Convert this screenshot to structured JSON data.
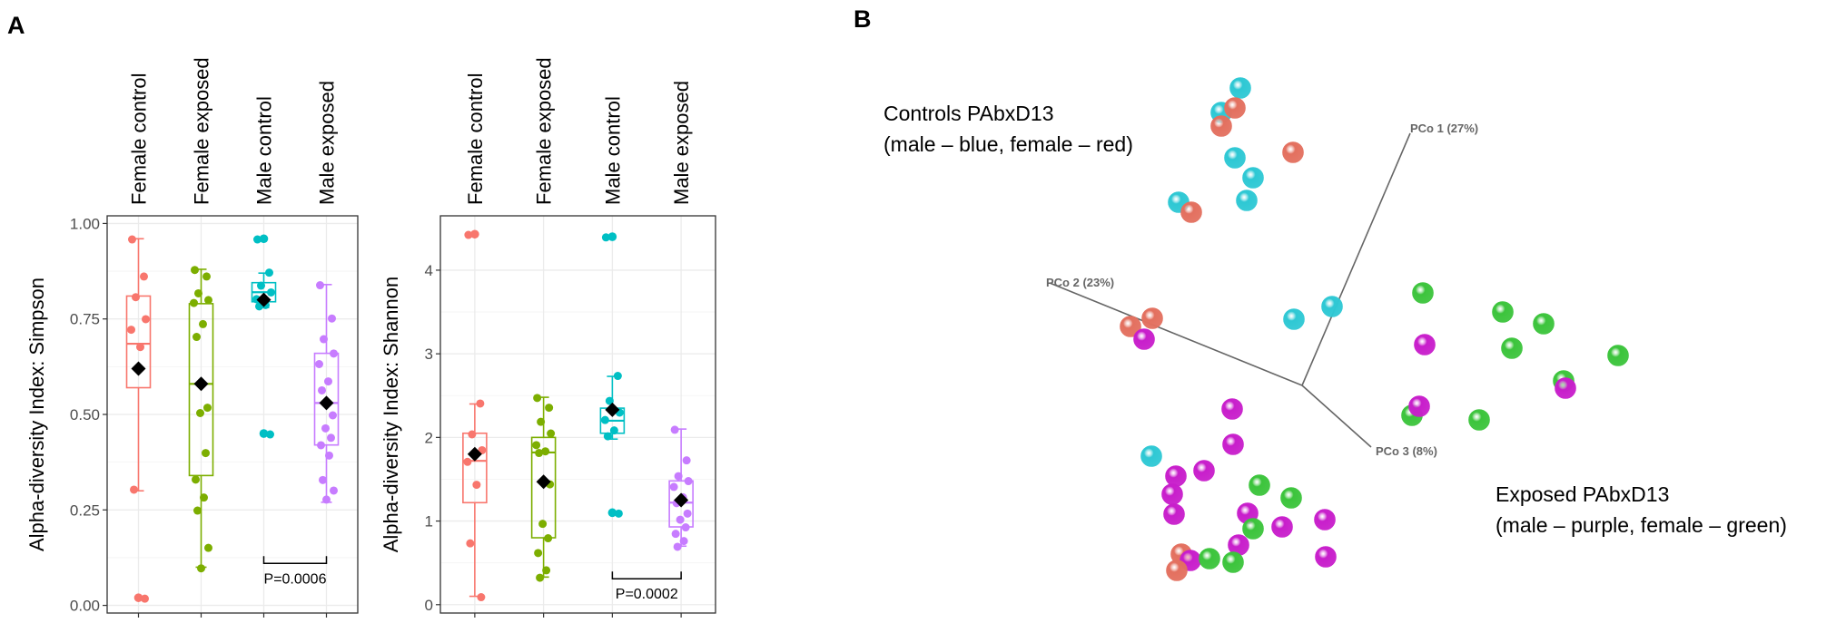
{
  "panels": {
    "a_label": "A",
    "b_label": "B"
  },
  "colors": {
    "female_control": "#F8766D",
    "female_exposed": "#7CAE00",
    "male_control": "#00BFC4",
    "male_exposed": "#C77CFF",
    "pcoa_red": "#E3705F",
    "pcoa_cyan": "#2EC8D4",
    "pcoa_green": "#3CC43C",
    "pcoa_purple": "#C81ECB"
  },
  "chart_data": [
    {
      "id": "simpson",
      "type": "box",
      "ylabel": "Alpha-diversity Index: Simpson",
      "ylim": [
        -0.02,
        1.02
      ],
      "yticks": [
        {
          "value": 0.0,
          "label": "0.00"
        },
        {
          "value": 0.25,
          "label": "0.25"
        },
        {
          "value": 0.5,
          "label": "0.50"
        },
        {
          "value": 0.75,
          "label": "0.75"
        },
        {
          "value": 1.0,
          "label": "1.00"
        }
      ],
      "categories": [
        "Female control",
        "Female exposed",
        "Male control",
        "Male exposed"
      ],
      "boxes": [
        {
          "whisker_low": 0.3,
          "q1": 0.57,
          "median": 0.685,
          "q3": 0.81,
          "whisker_high": 0.96,
          "mean": 0.62,
          "outliers": [
            0.02
          ],
          "points": [
            0.96,
            0.86,
            0.81,
            0.75,
            0.72,
            0.68,
            0.3,
            0.02
          ]
        },
        {
          "whisker_low": 0.1,
          "q1": 0.34,
          "median": 0.58,
          "q3": 0.79,
          "whisker_high": 0.88,
          "mean": 0.58,
          "outliers": [],
          "points": [
            0.88,
            0.86,
            0.82,
            0.8,
            0.79,
            0.74,
            0.7,
            0.52,
            0.5,
            0.4,
            0.33,
            0.28,
            0.25,
            0.15,
            0.1
          ]
        },
        {
          "whisker_low": 0.78,
          "q1": 0.795,
          "median": 0.82,
          "q3": 0.845,
          "whisker_high": 0.87,
          "mean": 0.8,
          "outliers": [
            0.96,
            0.45
          ],
          "points": [
            0.96,
            0.87,
            0.84,
            0.82,
            0.8,
            0.79,
            0.78,
            0.45
          ]
        },
        {
          "whisker_low": 0.27,
          "q1": 0.42,
          "median": 0.53,
          "q3": 0.66,
          "whisker_high": 0.84,
          "mean": 0.53,
          "outliers": [],
          "points": [
            0.84,
            0.75,
            0.7,
            0.66,
            0.63,
            0.59,
            0.56,
            0.5,
            0.46,
            0.44,
            0.42,
            0.39,
            0.33,
            0.3,
            0.28
          ]
        }
      ],
      "significance": {
        "from": 2,
        "to": 3,
        "label": "P=0.0006",
        "y": 0.11
      }
    },
    {
      "id": "shannon",
      "type": "box",
      "ylabel": "Alpha-diversity Index: Shannon",
      "ylim": [
        -0.1,
        4.65
      ],
      "yticks": [
        {
          "value": 0,
          "label": "0"
        },
        {
          "value": 1,
          "label": "1"
        },
        {
          "value": 2,
          "label": "2"
        },
        {
          "value": 3,
          "label": "3"
        },
        {
          "value": 4,
          "label": "4"
        }
      ],
      "categories": [
        "Female control",
        "Female exposed",
        "Male control",
        "Male exposed"
      ],
      "boxes": [
        {
          "whisker_low": 0.1,
          "q1": 1.22,
          "median": 1.72,
          "q3": 2.05,
          "whisker_high": 2.4,
          "mean": 1.8,
          "outliers": [
            4.43
          ],
          "points": [
            4.43,
            2.4,
            2.05,
            1.85,
            1.7,
            1.45,
            0.72,
            0.1
          ]
        },
        {
          "whisker_low": 0.33,
          "q1": 0.8,
          "median": 1.82,
          "q3": 2.0,
          "whisker_high": 2.48,
          "mean": 1.47,
          "outliers": [],
          "points": [
            2.48,
            2.35,
            2.2,
            2.05,
            1.9,
            1.85,
            1.8,
            1.45,
            0.95,
            0.8,
            0.62,
            0.4,
            0.33
          ]
        },
        {
          "whisker_low": 1.98,
          "q1": 2.05,
          "median": 2.2,
          "q3": 2.35,
          "whisker_high": 2.73,
          "mean": 2.33,
          "outliers": [
            4.4,
            1.1
          ],
          "points": [
            4.4,
            2.73,
            2.45,
            2.3,
            2.2,
            2.1,
            2.0,
            1.1
          ]
        },
        {
          "whisker_low": 0.7,
          "q1": 0.93,
          "median": 1.22,
          "q3": 1.48,
          "whisker_high": 2.1,
          "mean": 1.25,
          "outliers": [],
          "points": [
            2.1,
            1.72,
            1.55,
            1.48,
            1.4,
            1.3,
            1.2,
            1.1,
            1.0,
            0.93,
            0.85,
            0.75,
            0.7
          ]
        }
      ],
      "significance": {
        "from": 2,
        "to": 3,
        "label": "P=0.0002",
        "y": 0.31
      }
    },
    {
      "id": "pcoa",
      "type": "scatter",
      "axes": [
        {
          "label": "PCo 1 (27%)"
        },
        {
          "label": "PCo 2 (23%)"
        },
        {
          "label": "PCo 3 (8%)"
        }
      ],
      "annotations": [
        {
          "line1": "Controls PAbxD13",
          "line2": "(male – blue, female – red)"
        },
        {
          "line1": "Exposed PAbxD13",
          "line2": "(male – purple, female – green)"
        }
      ]
    }
  ]
}
